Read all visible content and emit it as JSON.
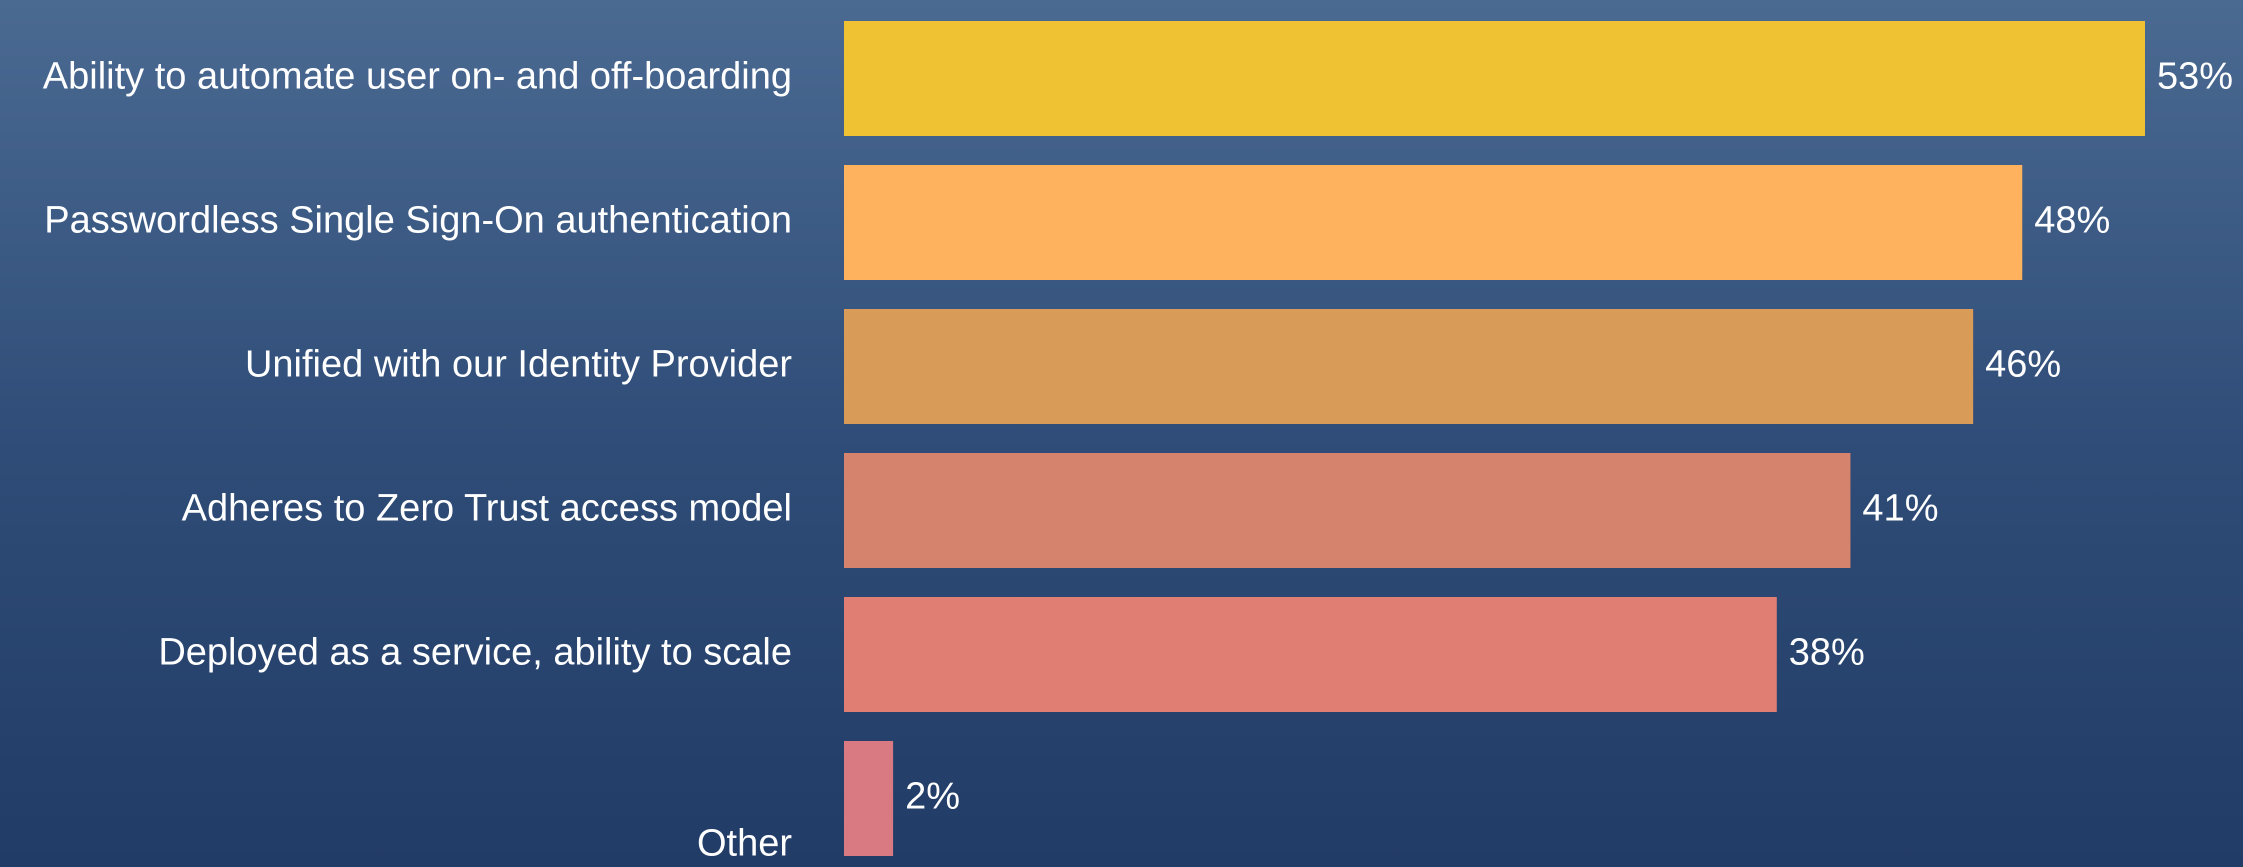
{
  "chart_data": {
    "type": "bar",
    "orientation": "horizontal",
    "categories": [
      "Ability to automate user on- and off-boarding",
      "Passwordless Single Sign-On authentication",
      "Unified with our Identity Provider",
      "Adheres to Zero Trust access model",
      "Deployed as a service, ability to scale",
      "Other"
    ],
    "values": [
      53,
      48,
      46,
      41,
      38,
      2
    ],
    "value_labels": [
      "53%",
      "48%",
      "46%",
      "41%",
      "38%",
      "2%"
    ],
    "colors": [
      "#eec232",
      "#ffb25e",
      "#d89c58",
      "#d6836d",
      "#e07e74",
      "#d97a82"
    ]
  }
}
